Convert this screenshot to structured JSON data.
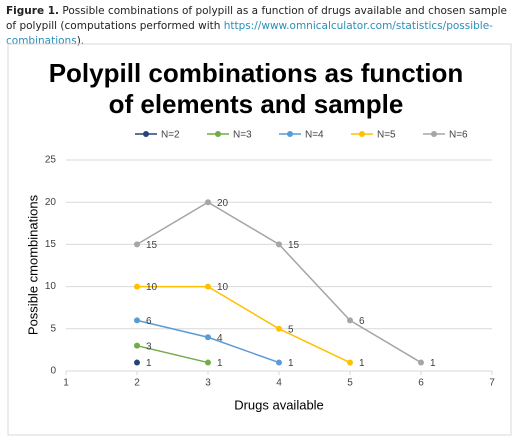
{
  "caption": {
    "label": "Figure 1.",
    "text": "Possible combinations of polypill as a function of drugs available and chosen sample of polypill (computations performed with ",
    "link": "https://www.omnicalculator.com/statistics/possible-combinations",
    "tail": ")."
  },
  "chart_data": {
    "type": "line",
    "title": [
      "Polypill combinations as function",
      "of elements and sample"
    ],
    "xlabel": "Drugs available",
    "ylabel": "Possible cmombinations",
    "xlim": [
      1,
      7
    ],
    "xticks": [
      1,
      2,
      3,
      4,
      5,
      6,
      7
    ],
    "ylim": [
      0,
      25
    ],
    "yticks": [
      0,
      5,
      10,
      15,
      20,
      25
    ],
    "grid": true,
    "legend": "top",
    "series": [
      {
        "name": "N=2",
        "color": "#264478",
        "x": [
          2
        ],
        "values": [
          1
        ]
      },
      {
        "name": "N=3",
        "color": "#70ad47",
        "x": [
          2,
          3
        ],
        "values": [
          3,
          1
        ]
      },
      {
        "name": "N=4",
        "color": "#5b9bd5",
        "x": [
          2,
          3,
          4
        ],
        "values": [
          6,
          4,
          1
        ]
      },
      {
        "name": "N=5",
        "color": "#ffc000",
        "x": [
          2,
          3,
          4,
          5
        ],
        "values": [
          10,
          10,
          5,
          1
        ]
      },
      {
        "name": "N=6",
        "color": "#a5a5a5",
        "x": [
          2,
          3,
          4,
          5,
          6
        ],
        "values": [
          15,
          20,
          15,
          6,
          1
        ]
      }
    ]
  }
}
